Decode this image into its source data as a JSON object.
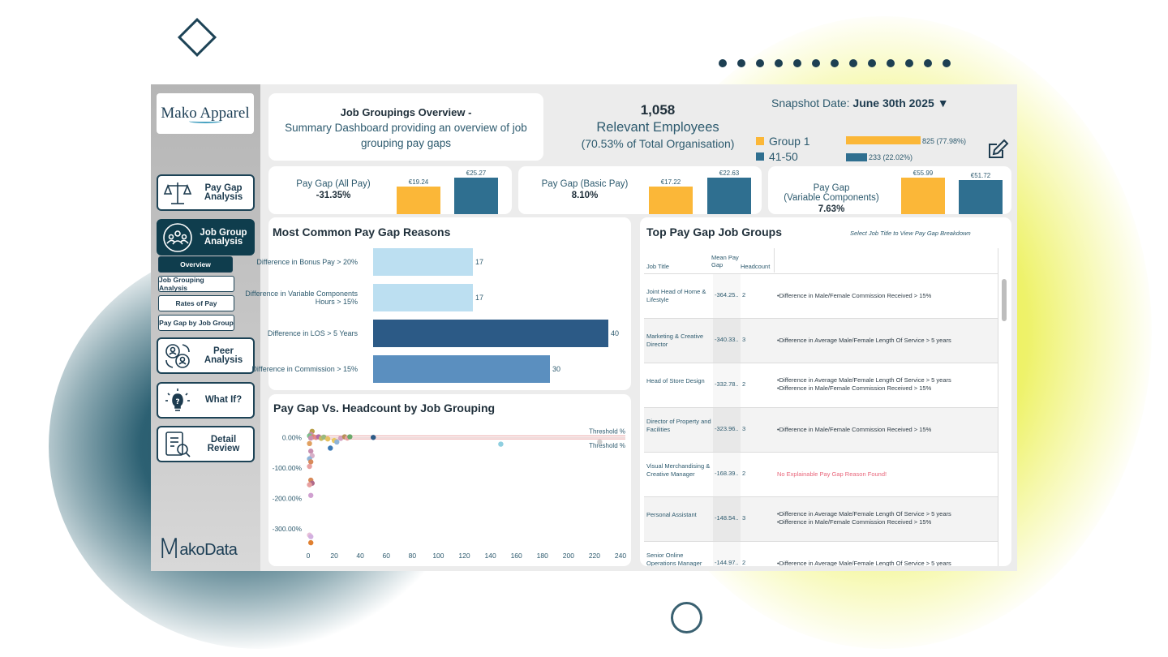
{
  "colors": {
    "yellow": "#fbb738",
    "teal": "#2f6f90",
    "light_blue": "#bcdff1",
    "dark_blue": "#2c5a86",
    "mid_blue": "#5b8fbf",
    "nav_active": "#0f3d4d",
    "red_text": "#e8657a"
  },
  "sidebar": {
    "logo": "Mako Apparel",
    "nav": [
      {
        "label": "Pay Gap Analysis",
        "icon": "scales-icon",
        "active": false
      },
      {
        "label": "Job Group Analysis",
        "icon": "group-icon",
        "active": true
      },
      {
        "label": "Peer Analysis",
        "icon": "peer-swap-icon",
        "active": false
      },
      {
        "label": "What If?",
        "icon": "lightbulb-icon",
        "active": false
      },
      {
        "label": "Detail Review",
        "icon": "document-search-icon",
        "active": false
      }
    ],
    "subnav": [
      "Overview",
      "Job Grouping Analysis",
      "Rates of Pay",
      "Pay Gap by Job Group"
    ],
    "footer_logo": "MakoData"
  },
  "header": {
    "title": "Job Groupings Overview -",
    "subtitle": "Summary Dashboard providing an overview of job grouping pay gaps",
    "employee_count": "1,058",
    "employee_label": "Relevant Employees",
    "employee_share": "(70.53% of Total Organisation)",
    "snapshot_label": "Snapshot Date:",
    "snapshot_value": "June 30th 2025",
    "groups": [
      {
        "name": "Group 1",
        "value": "825 (77.98%)",
        "share": 0.7798,
        "color": "#fbb738"
      },
      {
        "name": "41-50",
        "value": "233 (22.02%)",
        "share": 0.2202,
        "color": "#2f6f90"
      }
    ]
  },
  "kpis": [
    {
      "label": "Pay Gap (All Pay)",
      "value": "-31.35%",
      "bar1": "€19.24",
      "bar1_num": 19.24,
      "bar2": "€25.27",
      "bar2_num": 25.27
    },
    {
      "label": "Pay Gap (Basic Pay)",
      "value": "8.10%",
      "bar1": "€17.22",
      "bar1_num": 17.22,
      "bar2": "€22.63",
      "bar2_num": 22.63
    },
    {
      "label": "Pay Gap\n(Variable Components)",
      "value": "7.63%",
      "bar1": "€55.99",
      "bar1_num": 55.99,
      "bar2": "€51.72",
      "bar2_num": 51.72
    }
  ],
  "reasons": {
    "title": "Most Common Pay Gap Reasons",
    "items": [
      {
        "label": "Difference in Bonus Pay > 20%",
        "value": 17,
        "color": "#bcdff1"
      },
      {
        "label": "Difference in Variable Components Hours > 15%",
        "value": 17,
        "color": "#bcdff1"
      },
      {
        "label": "Difference in LOS > 5 Years",
        "value": 40,
        "color": "#2c5a86"
      },
      {
        "label": "Difference in Commission > 15%",
        "value": 30,
        "color": "#5b8fbf"
      }
    ]
  },
  "chart_data": {
    "type": "scatter",
    "title": "Pay Gap Vs. Headcount by Job Grouping",
    "xlim": [
      0,
      240
    ],
    "ylim": [
      -350,
      30
    ],
    "x_ticks": [
      "0",
      "20",
      "40",
      "60",
      "80",
      "100",
      "120",
      "140",
      "160",
      "180",
      "200",
      "220",
      "240"
    ],
    "y_ticks": [
      "0.00%",
      "-100.00%",
      "-200.00%",
      "-300.00%"
    ],
    "y_tick_values": [
      0,
      -100,
      -200,
      -300
    ],
    "threshold_lines": [
      {
        "label": "Threshold %",
        "value": 5
      },
      {
        "label": "Threshold %",
        "value": -5
      }
    ],
    "points": [
      {
        "x": 3,
        "y": 20,
        "color": "#b8a04a"
      },
      {
        "x": 2,
        "y": 10,
        "color": "#c98fb0"
      },
      {
        "x": 1,
        "y": 5,
        "color": "#7bbf8a"
      },
      {
        "x": 4,
        "y": 2,
        "color": "#d98a6a"
      },
      {
        "x": 2,
        "y": -2,
        "color": "#c98fb0"
      },
      {
        "x": 6,
        "y": 0,
        "color": "#e58a8a"
      },
      {
        "x": 8,
        "y": 2,
        "color": "#b06aa8"
      },
      {
        "x": 10,
        "y": -3,
        "color": "#c6b860"
      },
      {
        "x": 12,
        "y": 1,
        "color": "#9ab880"
      },
      {
        "x": 15,
        "y": -5,
        "color": "#e5c060"
      },
      {
        "x": 17,
        "y": -35,
        "color": "#3c7ab5"
      },
      {
        "x": 20,
        "y": -10,
        "color": "#e9c860"
      },
      {
        "x": 22,
        "y": -15,
        "color": "#8fb4d8"
      },
      {
        "x": 25,
        "y": -3,
        "color": "#d3a0c0"
      },
      {
        "x": 28,
        "y": 2,
        "color": "#b89058"
      },
      {
        "x": 30,
        "y": -2,
        "color": "#e8a0a0"
      },
      {
        "x": 32,
        "y": 2,
        "color": "#6aa86a"
      },
      {
        "x": 50,
        "y": 0,
        "color": "#2c5a86"
      },
      {
        "x": 1,
        "y": -20,
        "color": "#e0a060"
      },
      {
        "x": 2,
        "y": -45,
        "color": "#c98fb0"
      },
      {
        "x": 3,
        "y": -60,
        "color": "#d8b0c8"
      },
      {
        "x": 1,
        "y": -70,
        "color": "#8fb4d8"
      },
      {
        "x": 2,
        "y": -80,
        "color": "#d88a5a"
      },
      {
        "x": 1,
        "y": -95,
        "color": "#e8a0a0"
      },
      {
        "x": 2,
        "y": -140,
        "color": "#d88a5a"
      },
      {
        "x": 3,
        "y": -150,
        "color": "#b06a8a"
      },
      {
        "x": 1,
        "y": -155,
        "color": "#e8a0a0"
      },
      {
        "x": 2,
        "y": -190,
        "color": "#d0a0d0"
      },
      {
        "x": 1,
        "y": -320,
        "color": "#e8c0d8"
      },
      {
        "x": 2,
        "y": -325,
        "color": "#d3b0e0"
      },
      {
        "x": 2,
        "y": -345,
        "color": "#e08030"
      },
      {
        "x": 148,
        "y": -22,
        "color": "#8fcfe0"
      },
      {
        "x": 224,
        "y": -15,
        "color": "#cfcfcf"
      }
    ]
  },
  "table": {
    "title": "Top Pay Gap Job Groups",
    "hint": "Select Job Title to View Pay Gap Breakdown",
    "headers": {
      "job_title": "Job Title",
      "mean": "Mean Pay Gap",
      "headcount": "Headcount"
    },
    "rows": [
      {
        "title": "Joint Head of Home & Lifestyle",
        "mean": "-364.25..",
        "headcount": "2",
        "reasons": [
          "•Difference in Male/Female Commission Received > 15%"
        ],
        "red": false
      },
      {
        "title": "Marketing & Creative Director",
        "mean": "-340.33..",
        "headcount": "3",
        "reasons": [
          "•Difference in Average Male/Female Length Of Service > 5 years"
        ],
        "red": false
      },
      {
        "title": "Head of Store Design",
        "mean": "-332.78..",
        "headcount": "2",
        "reasons": [
          "•Difference in Average Male/Female Length Of Service > 5 years",
          "•Difference in Male/Female Commission Received > 15%"
        ],
        "red": false
      },
      {
        "title": "Director of Property and Facilities",
        "mean": "-323.96..",
        "headcount": "3",
        "reasons": [
          "•Difference in Male/Female Commission Received > 15%"
        ],
        "red": false
      },
      {
        "title": "Visual Merchandising & Creative Manager",
        "mean": "-168.39..",
        "headcount": "2",
        "reasons": [
          "No Explainable Pay Gap Reason Found!"
        ],
        "red": true
      },
      {
        "title": "Personal Assistant",
        "mean": "-148.54..",
        "headcount": "3",
        "reasons": [
          "•Difference in Average Male/Female Length Of Service > 5 years",
          "•Difference in Male/Female Commission Received > 15%"
        ],
        "red": false
      },
      {
        "title": "Senior Online Operations Manager",
        "mean": "-144.97..",
        "headcount": "2",
        "reasons": [
          "•Difference in Average Male/Female Length Of Service > 5 years"
        ],
        "red": false
      }
    ]
  }
}
